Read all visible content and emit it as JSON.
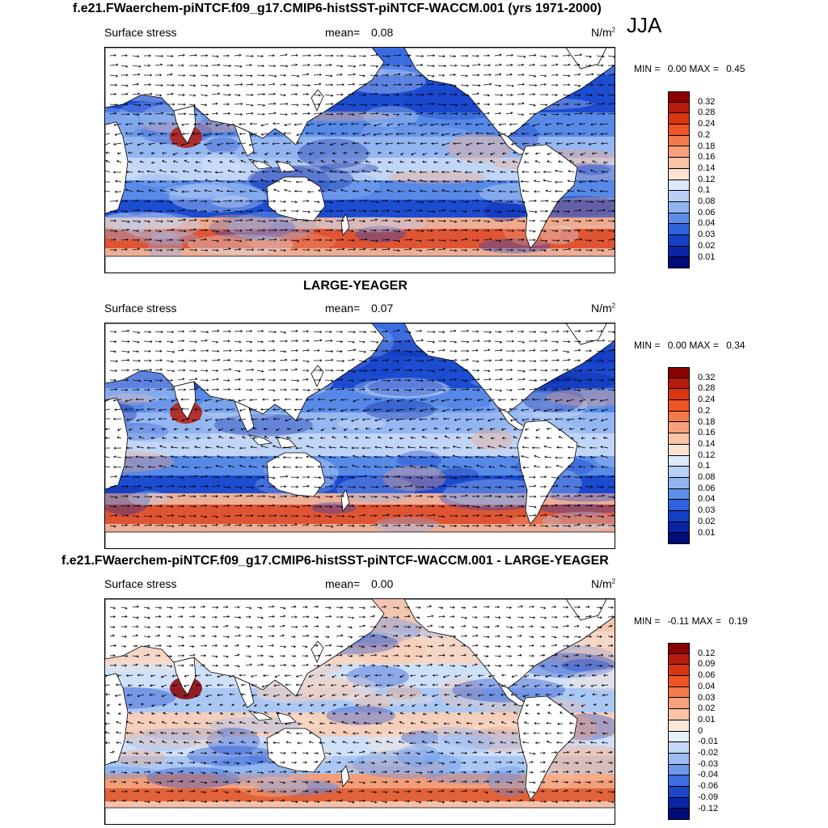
{
  "season": "JJA",
  "panels": [
    {
      "id": "top",
      "title": "f.e21.FWaerchem-piNTCF.f09_g17.CMIP6-histSST-piNTCF-WACCM.001 (yrs 1971-2000)",
      "variable": "Surface stress",
      "mean_label": "mean=",
      "mean_value": "0.08",
      "units": "N/m",
      "units_sup": "2",
      "min_label": "MIN =",
      "min_value": "0.00",
      "max_label": "MAX =",
      "max_value": "0.45",
      "colorbar": {
        "ticks": [
          "0.32",
          "0.28",
          "0.24",
          "0.2",
          "0.18",
          "0.16",
          "0.14",
          "0.12",
          "0.1",
          "0.08",
          "0.06",
          "0.04",
          "0.03",
          "0.02",
          "0.01"
        ],
        "colors": [
          "#8b0000",
          "#b71c0c",
          "#d9350f",
          "#ef5522",
          "#f37a4a",
          "#f6a07c",
          "#f9c4a6",
          "#fce3d1",
          "#dbe9fb",
          "#b8d0f7",
          "#90b3f1",
          "#5e8ee8",
          "#2f63de",
          "#1440c8",
          "#0a24a3",
          "#000c7a"
        ]
      },
      "chart_data": {
        "type": "heatmap",
        "title": "Surface stress",
        "field": "magnitude with wind stress vectors",
        "mean": 0.08,
        "min": 0.0,
        "max": 0.45,
        "units": "N/m2"
      }
    },
    {
      "id": "middle",
      "title": "LARGE-YEAGER",
      "variable": "Surface stress",
      "mean_label": "mean=",
      "mean_value": "0.07",
      "units": "N/m",
      "units_sup": "2",
      "min_label": "MIN =",
      "min_value": "0.00",
      "max_label": "MAX =",
      "max_value": "0.34",
      "colorbar": {
        "ticks": [
          "0.32",
          "0.28",
          "0.24",
          "0.2",
          "0.18",
          "0.16",
          "0.14",
          "0.12",
          "0.1",
          "0.08",
          "0.06",
          "0.04",
          "0.03",
          "0.02",
          "0.01"
        ],
        "colors": [
          "#8b0000",
          "#b71c0c",
          "#d9350f",
          "#ef5522",
          "#f37a4a",
          "#f6a07c",
          "#f9c4a6",
          "#fce3d1",
          "#dbe9fb",
          "#b8d0f7",
          "#90b3f1",
          "#5e8ee8",
          "#2f63de",
          "#1440c8",
          "#0a24a3",
          "#000c7a"
        ]
      },
      "chart_data": {
        "type": "heatmap",
        "title": "Surface stress",
        "field": "magnitude with wind stress vectors",
        "mean": 0.07,
        "min": 0.0,
        "max": 0.34,
        "units": "N/m2"
      }
    },
    {
      "id": "bottom",
      "title": "f.e21.FWaerchem-piNTCF.f09_g17.CMIP6-histSST-piNTCF-WACCM.001 - LARGE-YEAGER",
      "variable": "Surface stress",
      "mean_label": "mean=",
      "mean_value": "0.00",
      "units": "N/m",
      "units_sup": "2",
      "min_label": "MIN =",
      "min_value": "-0.11",
      "max_label": "MAX =",
      "max_value": "0.19",
      "colorbar": {
        "ticks": [
          "0.12",
          "0.09",
          "0.06",
          "0.04",
          "0.03",
          "0.02",
          "0.01",
          "0",
          "-0.01",
          "-0.02",
          "-0.03",
          "-0.04",
          "-0.06",
          "-0.09",
          "-0.12"
        ],
        "colors": [
          "#8b0000",
          "#b71c0c",
          "#d9350f",
          "#ef5522",
          "#f37a4a",
          "#f6a07c",
          "#f9c4a6",
          "#fce8da",
          "#e4effc",
          "#c3d8f8",
          "#9dbbf2",
          "#6f98ea",
          "#3d6ee0",
          "#1a46c9",
          "#0b26a5",
          "#000c7a"
        ]
      },
      "chart_data": {
        "type": "heatmap",
        "title": "Surface stress difference",
        "field": "difference with wind stress vectors",
        "mean": 0.0,
        "min": -0.11,
        "max": 0.19,
        "units": "N/m2"
      }
    }
  ]
}
